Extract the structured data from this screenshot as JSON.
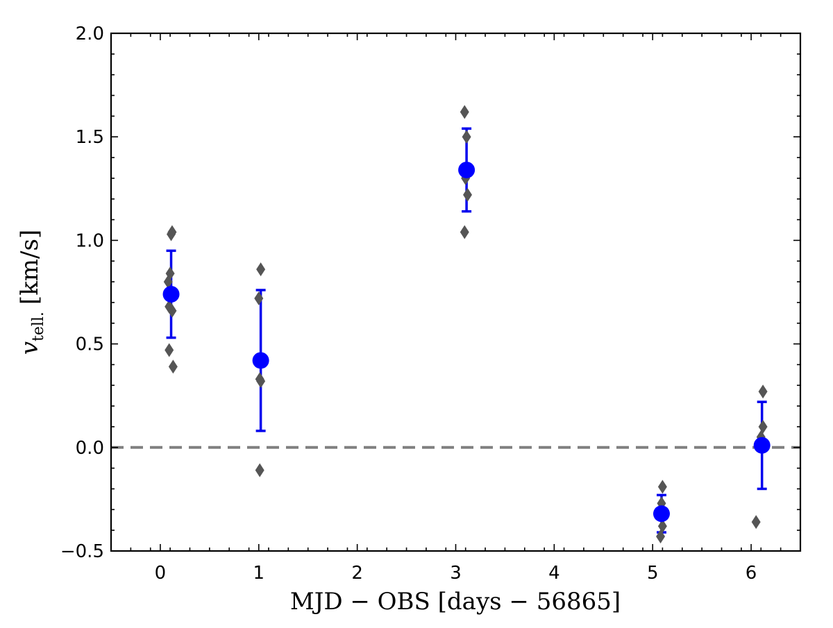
{
  "chart_data": {
    "type": "scatter",
    "xlabel": "MJD − OBS [days − 56865]",
    "ylabel_main": "v",
    "ylabel_sub": "tell.",
    "ylabel_unit": "[km/s]",
    "xlim": [
      -0.5,
      6.5
    ],
    "ylim": [
      -0.5,
      2.0
    ],
    "x_ticks": [
      0,
      1,
      2,
      3,
      4,
      5,
      6
    ],
    "x_tick_labels": [
      "0",
      "1",
      "2",
      "3",
      "4",
      "5",
      "6"
    ],
    "y_ticks": [
      -0.5,
      0.0,
      0.5,
      1.0,
      1.5,
      2.0
    ],
    "y_tick_labels": [
      "−0.5",
      "0.0",
      "0.5",
      "1.0",
      "1.5",
      "2.0"
    ],
    "reference_line": {
      "y": 0.0,
      "style": "dashed",
      "color": "#808080"
    },
    "grid": false,
    "series": [
      {
        "marker": "circle",
        "color": "#0000ff",
        "points": [
          {
            "x": 0.11,
            "y": 0.74,
            "err_low": 0.53,
            "err_high": 0.95
          },
          {
            "x": 1.02,
            "y": 0.42,
            "err_low": 0.08,
            "err_high": 0.76
          },
          {
            "x": 3.11,
            "y": 1.34,
            "err_low": 1.14,
            "err_high": 1.54
          },
          {
            "x": 5.09,
            "y": -0.32,
            "err_low": -0.41,
            "err_high": -0.23
          },
          {
            "x": 6.11,
            "y": 0.01,
            "err_low": -0.2,
            "err_high": 0.22
          }
        ]
      },
      {
        "marker": "diamond",
        "color": "#555555",
        "points": [
          {
            "x": 0.12,
            "y": 1.04
          },
          {
            "x": 0.11,
            "y": 1.03
          },
          {
            "x": 0.1,
            "y": 0.84
          },
          {
            "x": 0.08,
            "y": 0.8
          },
          {
            "x": 0.09,
            "y": 0.68
          },
          {
            "x": 0.12,
            "y": 0.66
          },
          {
            "x": 0.09,
            "y": 0.47
          },
          {
            "x": 0.13,
            "y": 0.39
          },
          {
            "x": 1.02,
            "y": 0.86
          },
          {
            "x": 1.0,
            "y": 0.72
          },
          {
            "x": 1.01,
            "y": 0.33
          },
          {
            "x": 1.02,
            "y": 0.32
          },
          {
            "x": 1.01,
            "y": -0.11
          },
          {
            "x": 3.09,
            "y": 1.62
          },
          {
            "x": 3.11,
            "y": 1.5
          },
          {
            "x": 3.1,
            "y": 1.3
          },
          {
            "x": 3.12,
            "y": 1.22
          },
          {
            "x": 3.09,
            "y": 1.04
          },
          {
            "x": 5.1,
            "y": -0.19
          },
          {
            "x": 5.09,
            "y": -0.27
          },
          {
            "x": 5.1,
            "y": -0.38
          },
          {
            "x": 5.08,
            "y": -0.43
          },
          {
            "x": 6.12,
            "y": 0.27
          },
          {
            "x": 6.12,
            "y": 0.1
          },
          {
            "x": 6.1,
            "y": 0.05
          },
          {
            "x": 6.05,
            "y": -0.36
          }
        ]
      }
    ]
  }
}
